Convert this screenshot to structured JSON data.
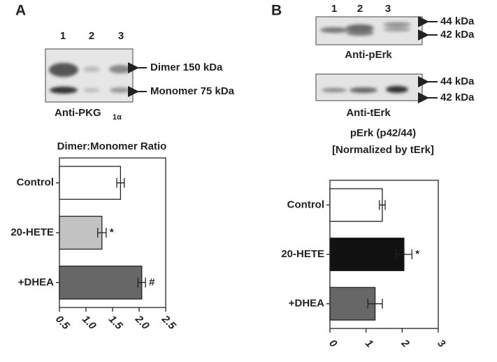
{
  "panels": [
    "A",
    "B"
  ],
  "blot_a": {
    "lanes": [
      "1",
      "2",
      "3"
    ],
    "bands": [
      "Dimer 150 kDa",
      "Monomer 75 kDa"
    ],
    "antibody": "Anti-PKG",
    "antibody_sub": "1α"
  },
  "blot_b": {
    "lanes": [
      "1",
      "2",
      "3"
    ],
    "top": {
      "bands": [
        "44 kDa",
        "42 kDa"
      ],
      "antibody": "Anti-pErk"
    },
    "bottom": {
      "bands": [
        "44 kDa",
        "42 kDa"
      ],
      "antibody": "Anti-tErk"
    }
  },
  "chart_data": [
    {
      "type": "hbar",
      "title": [
        "Dimer:Monomer Ratio"
      ],
      "categories": [
        "Control",
        "20-HETE",
        "+DHEA"
      ],
      "values": [
        1.65,
        1.3,
        2.05
      ],
      "errors": [
        0.07,
        0.08,
        0.07
      ],
      "annotations": [
        null,
        "*",
        "#"
      ],
      "colors": [
        "#ffffff",
        "#c2c2c2",
        "#676767"
      ],
      "xlim": [
        0.5,
        2.5
      ],
      "xticks": [
        0.5,
        {
          "value": 1,
          "label": "1.0"
        },
        1.5,
        {
          "value": 2,
          "label": "2.0"
        },
        2.5
      ]
    },
    {
      "type": "hbar",
      "title": [
        "pErk (p42/44)",
        "[Normalized by tErk]"
      ],
      "categories": [
        "Control",
        "20-HETE",
        "+DHEA"
      ],
      "values": [
        1.45,
        2.05,
        1.25
      ],
      "errors": [
        0.08,
        0.22,
        0.2
      ],
      "annotations": [
        null,
        "*",
        null
      ],
      "colors": [
        "#ffffff",
        "#111111",
        "#676767"
      ],
      "xlim": [
        0,
        3
      ],
      "xticks": [
        0,
        1,
        2,
        3
      ]
    }
  ]
}
